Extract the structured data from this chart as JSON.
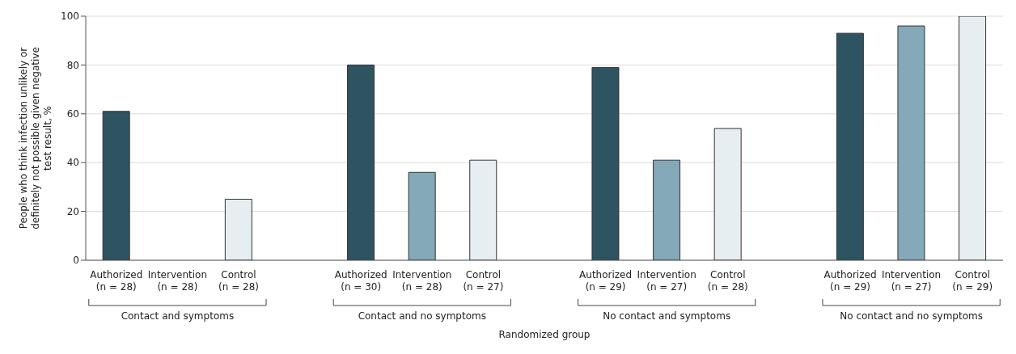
{
  "chart_data": {
    "type": "bar",
    "xlabel": "Randomized group",
    "ylabel": "People who think infection unlikely or definitely not possible given negative test result, %",
    "categories": [
      "Authorized\n(n = 28)",
      "Intervention\n(n = 28)",
      "Control\n(n = 28)",
      "Authorized\n(n = 30)",
      "Intervention\n(n = 28)",
      "Control\n(n = 27)",
      "Authorized\n(n = 29)",
      "Intervention\n(n = 27)",
      "Control\n(n = 28)",
      "Authorized\n(n = 29)",
      "Intervention\n(n = 27)",
      "Control\n(n = 29)"
    ],
    "values": [
      61,
      0,
      25,
      80,
      36,
      41,
      79,
      41,
      54,
      93,
      96,
      100
    ],
    "colors": [
      "#2e5361",
      "#84a9b8",
      "#e6eef2",
      "#2e5361",
      "#84a9b8",
      "#e6eef2",
      "#2e5361",
      "#84a9b8",
      "#e6eef2",
      "#2e5361",
      "#84a9b8",
      "#e6eef2"
    ],
    "annotations": [
      "Contact and symptoms",
      "Contact and no symptoms",
      "No contact and symptoms",
      "No contact and no symptoms"
    ],
    "ylim": [
      0,
      100
    ],
    "yticks": [
      0,
      20,
      40,
      60,
      80,
      100
    ],
    "grid": "y"
  }
}
